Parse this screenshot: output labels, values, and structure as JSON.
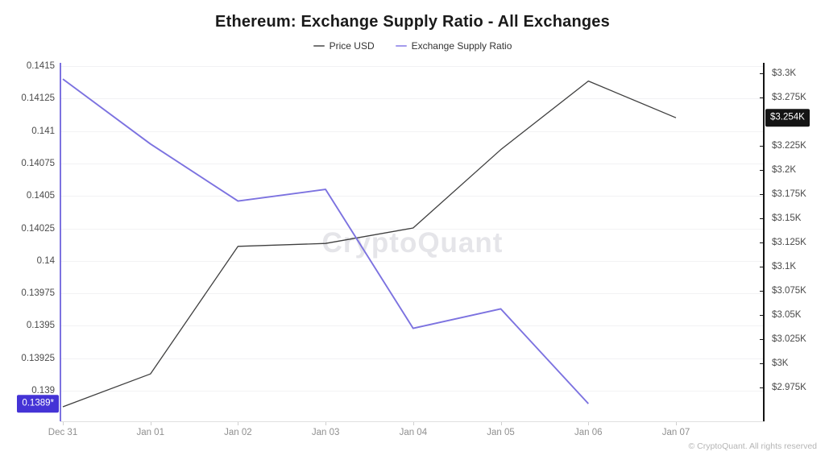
{
  "title": "Ethereum: Exchange Supply Ratio - All Exchanges",
  "legend": [
    {
      "label": "Price USD",
      "color": "#757575"
    },
    {
      "label": "Exchange Supply Ratio",
      "color": "#a49bed"
    }
  ],
  "watermark": "CryptoQuant",
  "footer": "© CryptoQuant. All rights reserved",
  "badges": {
    "left": {
      "text": "0.1389*",
      "value": 0.1389,
      "bg": "#4433d6"
    },
    "right": {
      "text": "$3.254K",
      "value": 3254,
      "bg": "#141414"
    }
  },
  "chart_data": {
    "type": "line",
    "title": "Ethereum: Exchange Supply Ratio - All Exchanges",
    "x": [
      "Dec 31",
      "Jan 01",
      "Jan 02",
      "Jan 03",
      "Jan 04",
      "Jan 05",
      "Jan 06",
      "Jan 07"
    ],
    "series": [
      {
        "name": "Price USD",
        "axis": "right",
        "color": "#3f3f3f",
        "values": [
          2955,
          2989,
          3121,
          3124,
          3140,
          3221,
          3292,
          3254
        ]
      },
      {
        "name": "Exchange Supply Ratio",
        "axis": "left",
        "color": "#7c72e0",
        "values": [
          0.1414,
          0.1409,
          0.14046,
          0.14055,
          0.13948,
          0.13963,
          0.1389,
          null
        ]
      }
    ],
    "left_axis": {
      "min": 0.139,
      "max": 0.1415,
      "ticks": [
        {
          "label": "0.1415",
          "value": 0.1415
        },
        {
          "label": "0.14125",
          "value": 0.14125
        },
        {
          "label": "0.141",
          "value": 0.141
        },
        {
          "label": "0.14075",
          "value": 0.14075
        },
        {
          "label": "0.1405",
          "value": 0.1405
        },
        {
          "label": "0.14025",
          "value": 0.14025
        },
        {
          "label": "0.14",
          "value": 0.14
        },
        {
          "label": "0.13975",
          "value": 0.13975
        },
        {
          "label": "0.1395",
          "value": 0.1395
        },
        {
          "label": "0.13925",
          "value": 0.13925
        },
        {
          "label": "0.139",
          "value": 0.139
        }
      ]
    },
    "right_axis": {
      "min": 2975,
      "max": 3300,
      "ticks": [
        {
          "label": "$3.3K",
          "value": 3300
        },
        {
          "label": "$3.275K",
          "value": 3275
        },
        {
          "label": "$3.225K",
          "value": 3225
        },
        {
          "label": "$3.2K",
          "value": 3200
        },
        {
          "label": "$3.175K",
          "value": 3175
        },
        {
          "label": "$3.15K",
          "value": 3150
        },
        {
          "label": "$3.125K",
          "value": 3125
        },
        {
          "label": "$3.1K",
          "value": 3100
        },
        {
          "label": "$3.075K",
          "value": 3075
        },
        {
          "label": "$3.05K",
          "value": 3050
        },
        {
          "label": "$3.025K",
          "value": 3025
        },
        {
          "label": "$3K",
          "value": 3000
        },
        {
          "label": "$2.975K",
          "value": 2975
        }
      ]
    },
    "grid": true,
    "legend_position": "top"
  }
}
